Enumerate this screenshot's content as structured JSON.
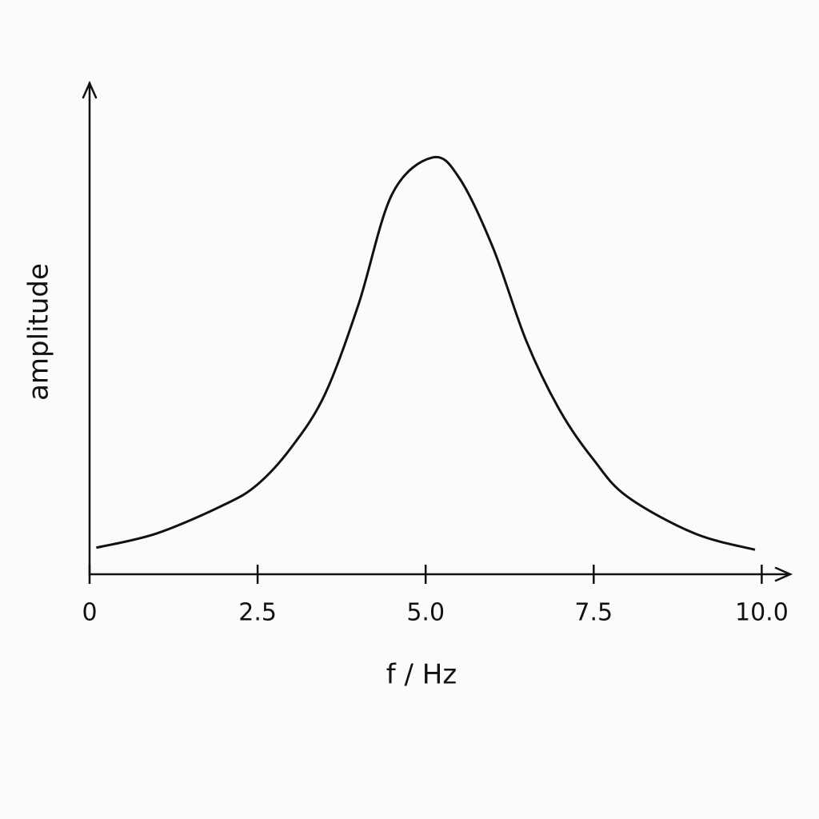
{
  "chart_data": {
    "type": "line",
    "x_label": "f / Hz",
    "y_label": "amplitude",
    "x": [
      0.1,
      1,
      2,
      2.5,
      3,
      3.5,
      4,
      4.5,
      5.1,
      5.5,
      6,
      6.5,
      7,
      7.5,
      8,
      9,
      9.9
    ],
    "series": [
      {
        "color": "#111111",
        "values": [
          0.065,
          0.1,
          0.17,
          0.22,
          0.31,
          0.44,
          0.66,
          0.93,
          1.02,
          0.97,
          0.8,
          0.57,
          0.4,
          0.28,
          0.19,
          0.1,
          0.06
        ]
      }
    ],
    "xlim": [
      0,
      10.4
    ],
    "ylim": [
      0,
      1.2
    ],
    "xticks": [
      0,
      2.5,
      {
        "value": 5,
        "label": "5.0"
      },
      7.5,
      {
        "value": 10,
        "label": "10.0"
      }
    ],
    "grid": false
  }
}
